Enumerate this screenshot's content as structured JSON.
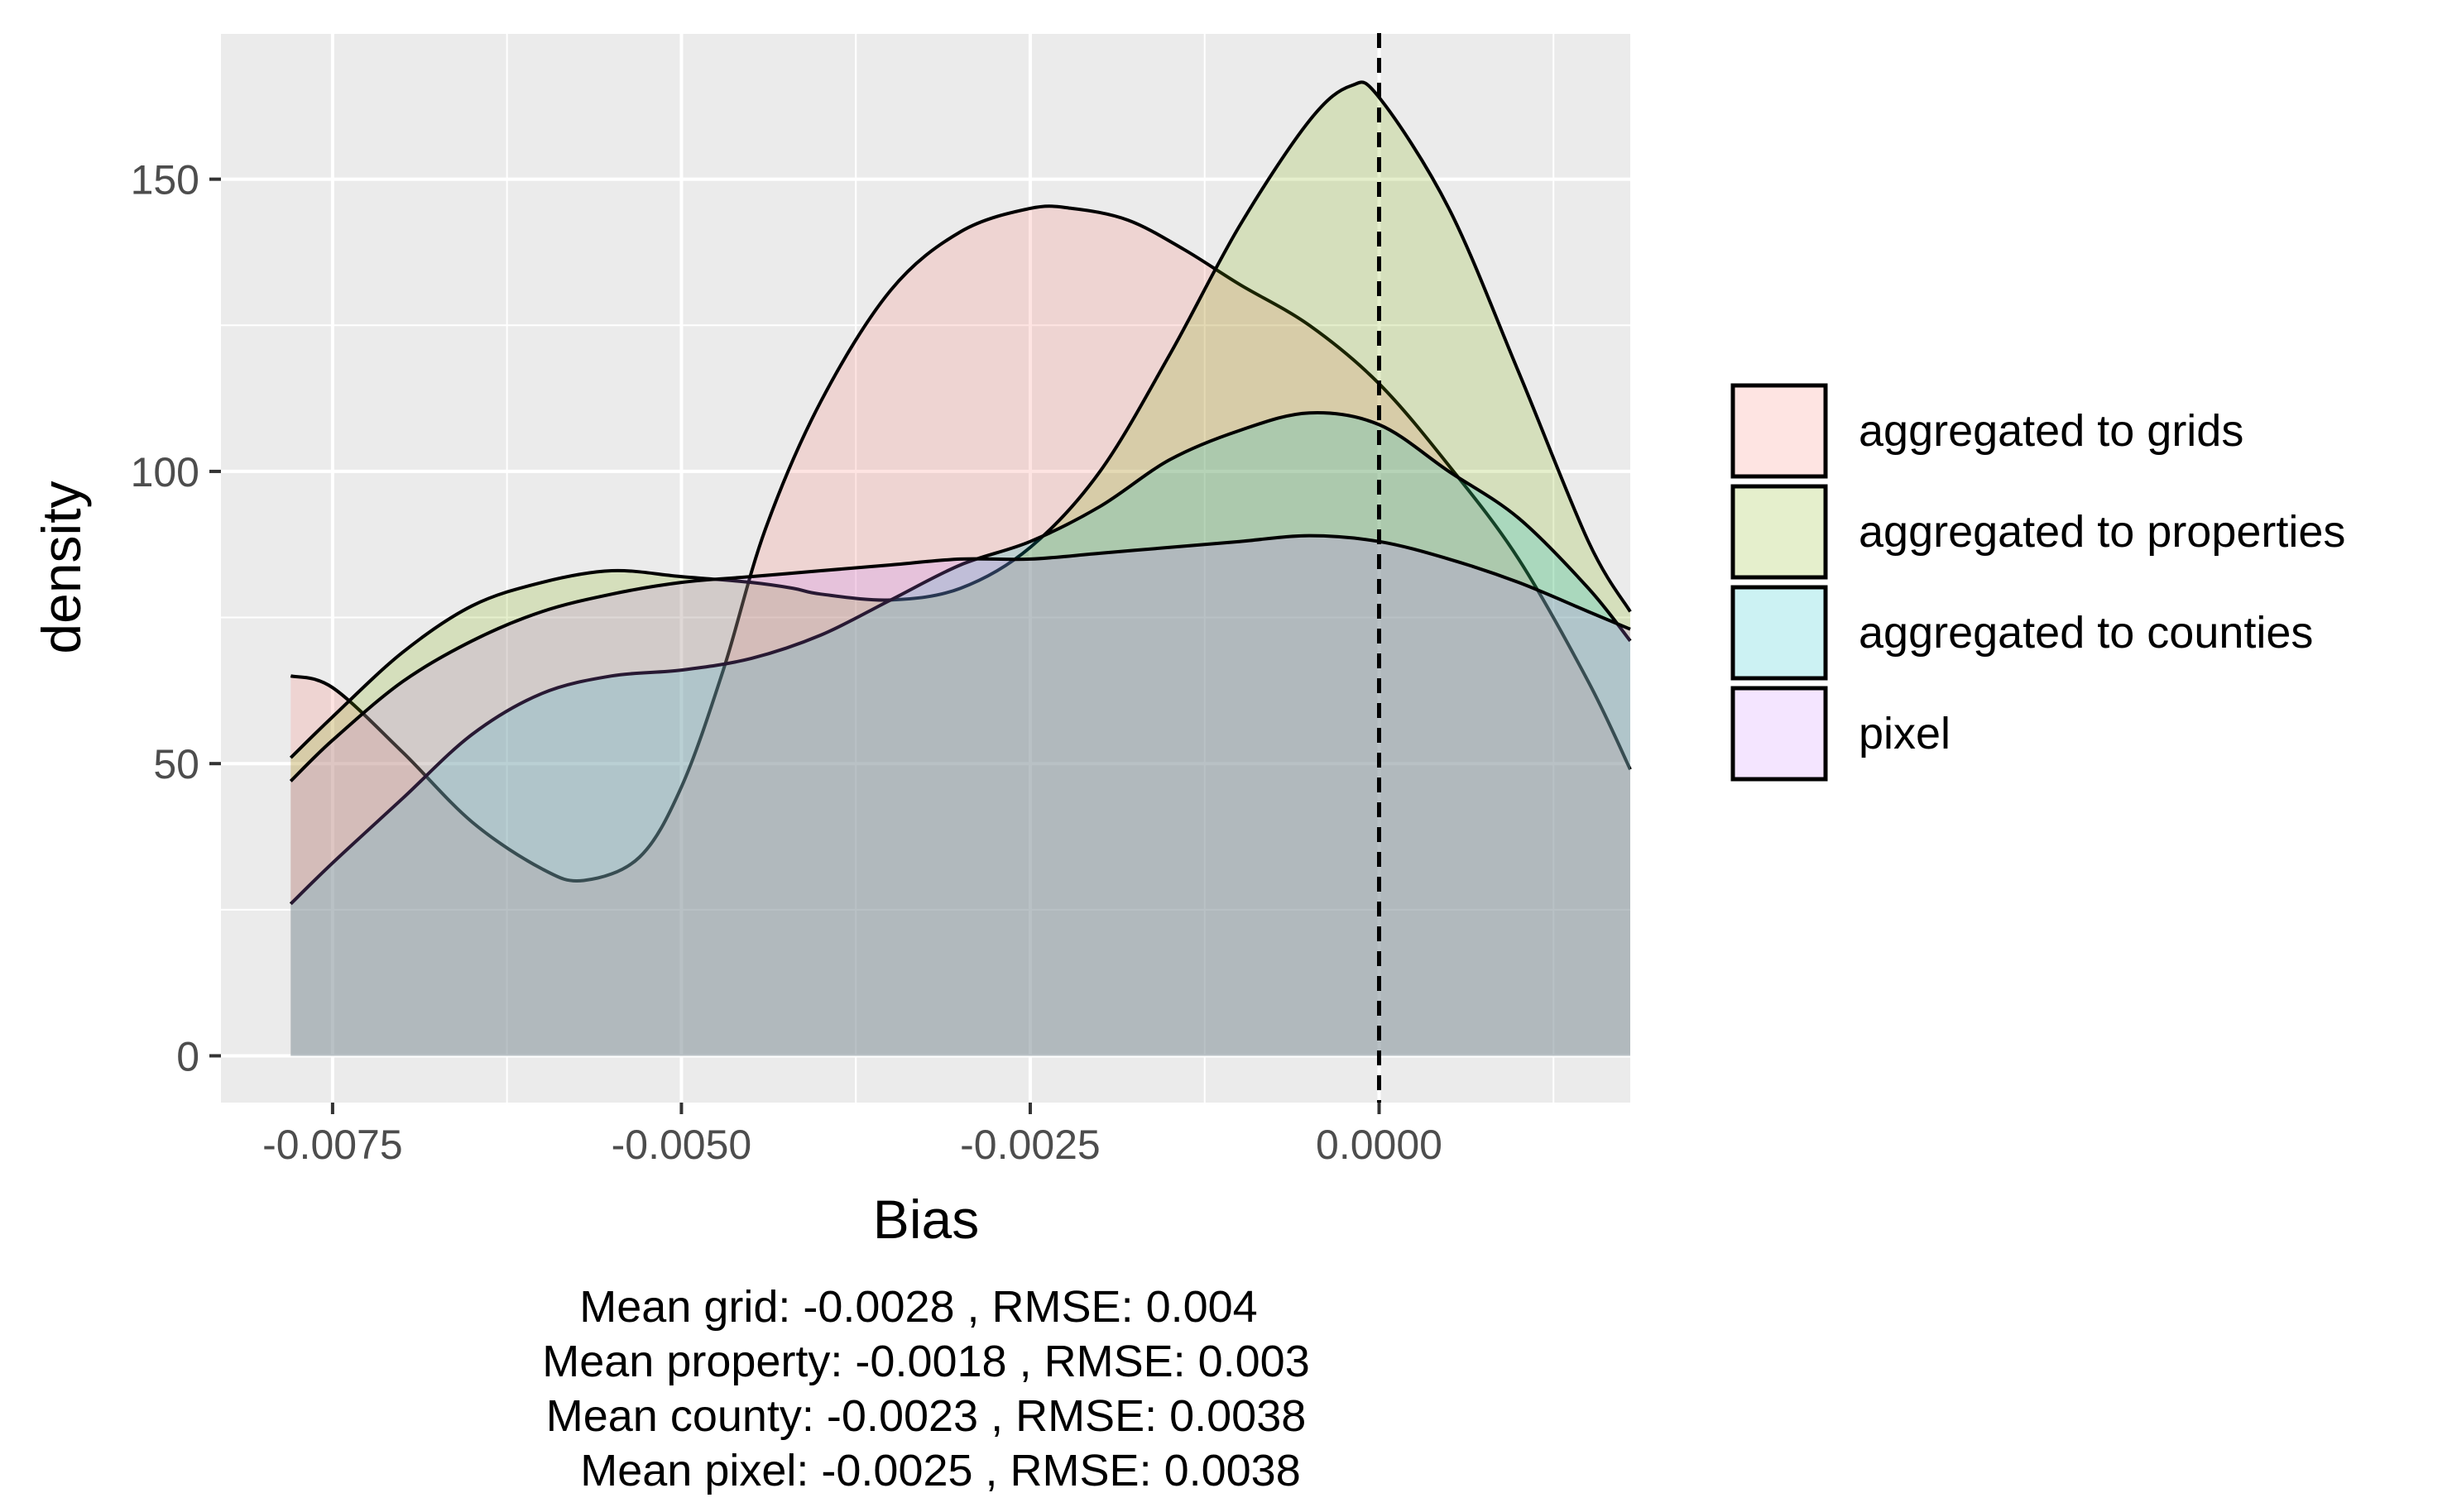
{
  "chart_data": {
    "type": "area",
    "subtype": "density",
    "xlabel": "Bias",
    "ylabel": "density",
    "xlim": [
      -0.0083,
      0.0018
    ],
    "ylim": [
      -8,
      175
    ],
    "x_ticks": [
      -0.0075,
      -0.005,
      -0.0025,
      0.0
    ],
    "x_tick_labels": [
      "-0.0075",
      "-0.0050",
      "-0.0025",
      "0.0000"
    ],
    "y_ticks": [
      0,
      50,
      100,
      150
    ],
    "y_tick_labels": [
      "0",
      "50",
      "100",
      "150"
    ],
    "grid": true,
    "legend_position": "right",
    "reference_line": {
      "x": 0.0,
      "style": "dashed"
    },
    "series": [
      {
        "name": "aggregated to grids",
        "color": "#F8766D",
        "points": [
          [
            -0.0078,
            65
          ],
          [
            -0.0075,
            63
          ],
          [
            -0.007,
            52
          ],
          [
            -0.0065,
            40
          ],
          [
            -0.006,
            32
          ],
          [
            -0.0057,
            30
          ],
          [
            -0.0053,
            34
          ],
          [
            -0.005,
            46
          ],
          [
            -0.0047,
            66
          ],
          [
            -0.0044,
            90
          ],
          [
            -0.004,
            112
          ],
          [
            -0.0035,
            131
          ],
          [
            -0.003,
            141
          ],
          [
            -0.0025,
            145
          ],
          [
            -0.0022,
            145
          ],
          [
            -0.0018,
            143
          ],
          [
            -0.0014,
            138
          ],
          [
            -0.001,
            132
          ],
          [
            -0.0005,
            125
          ],
          [
            0.0,
            115
          ],
          [
            0.0005,
            101
          ],
          [
            0.001,
            85
          ],
          [
            0.0015,
            64
          ],
          [
            0.0018,
            49
          ]
        ]
      },
      {
        "name": "aggregated to properties",
        "color": "#7CAE00",
        "points": [
          [
            -0.0078,
            51
          ],
          [
            -0.0075,
            58
          ],
          [
            -0.007,
            69
          ],
          [
            -0.0065,
            77
          ],
          [
            -0.006,
            81
          ],
          [
            -0.0055,
            83
          ],
          [
            -0.005,
            82
          ],
          [
            -0.0045,
            81
          ],
          [
            -0.0042,
            80
          ],
          [
            -0.004,
            79
          ],
          [
            -0.0035,
            78
          ],
          [
            -0.003,
            80
          ],
          [
            -0.0025,
            87
          ],
          [
            -0.002,
            100
          ],
          [
            -0.0015,
            120
          ],
          [
            -0.001,
            142
          ],
          [
            -0.0005,
            160
          ],
          [
            -0.0002,
            166
          ],
          [
            0.0,
            164
          ],
          [
            0.0005,
            145
          ],
          [
            0.001,
            117
          ],
          [
            0.0015,
            88
          ],
          [
            0.0018,
            76
          ]
        ]
      },
      {
        "name": "aggregated to counties",
        "color": "#00BFC4",
        "points": [
          [
            -0.0078,
            26
          ],
          [
            -0.0075,
            33
          ],
          [
            -0.007,
            44
          ],
          [
            -0.0065,
            55
          ],
          [
            -0.006,
            62
          ],
          [
            -0.0055,
            65
          ],
          [
            -0.005,
            66
          ],
          [
            -0.0045,
            68
          ],
          [
            -0.004,
            72
          ],
          [
            -0.0035,
            78
          ],
          [
            -0.003,
            84
          ],
          [
            -0.0025,
            88
          ],
          [
            -0.002,
            94
          ],
          [
            -0.0015,
            102
          ],
          [
            -0.001,
            107
          ],
          [
            -0.0005,
            110
          ],
          [
            0.0,
            108
          ],
          [
            0.0005,
            100
          ],
          [
            0.001,
            92
          ],
          [
            0.0015,
            80
          ],
          [
            0.0018,
            71
          ]
        ]
      },
      {
        "name": "pixel",
        "color": "#C77CFF",
        "points": [
          [
            -0.0078,
            47
          ],
          [
            -0.0075,
            54
          ],
          [
            -0.007,
            64
          ],
          [
            -0.0065,
            71
          ],
          [
            -0.006,
            76
          ],
          [
            -0.0055,
            79
          ],
          [
            -0.005,
            81
          ],
          [
            -0.0045,
            82
          ],
          [
            -0.004,
            83
          ],
          [
            -0.0035,
            84
          ],
          [
            -0.003,
            85
          ],
          [
            -0.0025,
            85
          ],
          [
            -0.002,
            86
          ],
          [
            -0.0015,
            87
          ],
          [
            -0.001,
            88
          ],
          [
            -0.0005,
            89
          ],
          [
            0.0,
            88
          ],
          [
            0.0005,
            85
          ],
          [
            0.001,
            81
          ],
          [
            0.0015,
            76
          ],
          [
            0.0018,
            73
          ]
        ]
      }
    ]
  },
  "caption": [
    "Mean grid: -0.0028 , RMSE: 0.004",
    "Mean property: -0.0018 , RMSE: 0.003",
    "Mean county: -0.0023 , RMSE: 0.0038",
    " Mean pixel: -0.0025 , RMSE: 0.0038"
  ]
}
